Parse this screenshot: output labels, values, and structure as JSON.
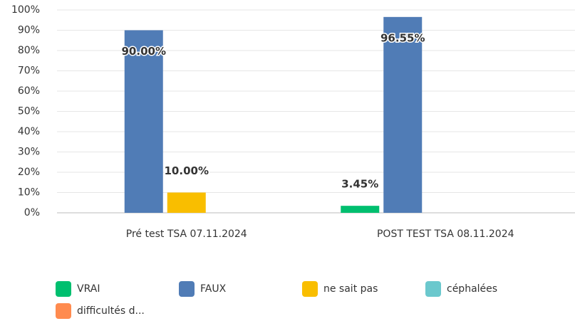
{
  "chart_data": {
    "type": "bar",
    "categories": [
      "Pré test TSA 07.11.2024",
      "POST TEST TSA 08.11.2024"
    ],
    "series": [
      {
        "name": "VRAI",
        "color": "#00bf6f",
        "values": [
          0,
          3.45
        ],
        "value_labels": [
          null,
          "3.45%"
        ]
      },
      {
        "name": "FAUX",
        "color": "#507cb6",
        "values": [
          90,
          96.55
        ],
        "value_labels": [
          "90.00%",
          "96.55%"
        ]
      },
      {
        "name": "ne sait pas",
        "color": "#f9be00",
        "values": [
          10,
          0
        ],
        "value_labels": [
          "10.00%",
          null
        ]
      },
      {
        "name": "céphalées",
        "color": "#6bc8cd",
        "values": [
          0,
          0
        ],
        "value_labels": [
          null,
          null
        ]
      },
      {
        "name": "difficultés d...",
        "color": "#ff8b4f",
        "values": [
          0,
          0
        ],
        "value_labels": [
          null,
          null
        ]
      }
    ],
    "ylim": [
      0,
      100
    ],
    "yticks": [
      {
        "value": 0,
        "label": "0%"
      },
      {
        "value": 10,
        "label": "10%"
      },
      {
        "value": 20,
        "label": "20%"
      },
      {
        "value": 30,
        "label": "30%"
      },
      {
        "value": 40,
        "label": "40%"
      },
      {
        "value": 50,
        "label": "50%"
      },
      {
        "value": 60,
        "label": "60%"
      },
      {
        "value": 70,
        "label": "70%"
      },
      {
        "value": 80,
        "label": "80%"
      },
      {
        "value": 90,
        "label": "90%"
      },
      {
        "value": 100,
        "label": "100%"
      }
    ],
    "grid": true,
    "legend": "bottom"
  }
}
